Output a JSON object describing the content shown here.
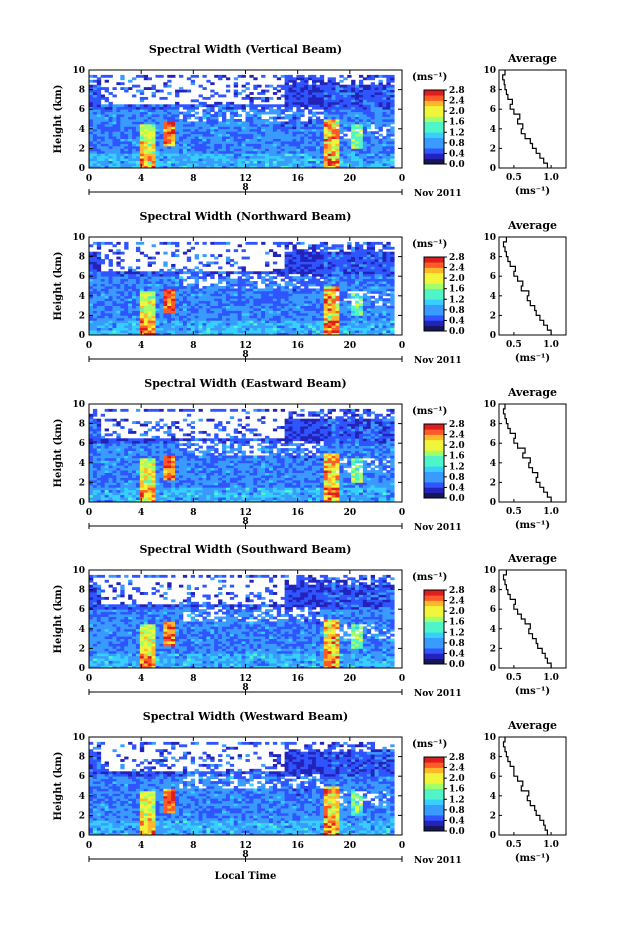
{
  "figure": {
    "date_label": "Nov 2011",
    "x_label": "Local Time",
    "y_label": "Height (km)",
    "colorbar_unit": "(ms⁻¹)",
    "colorbar_ticks": [
      "0.0",
      "0.4",
      "0.8",
      "1.2",
      "1.6",
      "2.0",
      "2.4",
      "2.8"
    ],
    "x_ticks": [
      "0",
      "4",
      "8",
      "12",
      "16",
      "20",
      "0"
    ],
    "date_ticks": [
      "8"
    ],
    "y_ticks": [
      "0",
      "2",
      "4",
      "6",
      "8",
      "10"
    ],
    "avg_title": "Average",
    "avg_xlabel": "(ms⁻¹)",
    "avg_x_ticks": [
      "0.5",
      "1.0"
    ],
    "colormap": [
      "#16165a",
      "#2323b9",
      "#2f55ff",
      "#3a9bff",
      "#36d0ff",
      "#4ff5c8",
      "#a2ff6a",
      "#f0f53a",
      "#ffb82a",
      "#ff5a28",
      "#dd1e1e"
    ],
    "colors": {
      "no_data": "#ffffff",
      "axis": "#000000"
    }
  },
  "chart_data": [
    {
      "type": "heatmap",
      "title": "Spectral Width (Vertical Beam)",
      "xlabel": "",
      "ylabel": "Height (km)",
      "xlim": [
        0,
        24
      ],
      "ylim": [
        0,
        10
      ],
      "colorbar_range": [
        0.0,
        2.8
      ],
      "average_profile": {
        "heights": [
          0,
          0.5,
          1,
          1.5,
          2,
          2.5,
          3,
          3.5,
          4,
          4.5,
          5,
          5.5,
          6,
          6.5,
          7,
          7.5,
          8,
          8.5,
          9,
          9.5
        ],
        "values": [
          0.95,
          0.9,
          0.85,
          0.8,
          0.75,
          0.72,
          0.65,
          0.6,
          0.62,
          0.55,
          0.58,
          0.5,
          0.45,
          0.48,
          0.42,
          0.4,
          0.38,
          0.37,
          0.35,
          0.38
        ]
      }
    },
    {
      "type": "heatmap",
      "title": "Spectral Width (Northward Beam)",
      "xlabel": "",
      "ylabel": "Height (km)",
      "xlim": [
        0,
        24
      ],
      "ylim": [
        0,
        10
      ],
      "colorbar_range": [
        0.0,
        2.8
      ],
      "average_profile": {
        "heights": [
          0,
          0.5,
          1,
          1.5,
          2,
          2.5,
          3,
          3.5,
          4,
          4.5,
          5,
          5.5,
          6,
          6.5,
          7,
          7.5,
          8,
          8.5,
          9,
          9.5
        ],
        "values": [
          1.0,
          0.95,
          0.9,
          0.85,
          0.8,
          0.78,
          0.72,
          0.68,
          0.7,
          0.6,
          0.62,
          0.55,
          0.5,
          0.52,
          0.45,
          0.42,
          0.4,
          0.38,
          0.36,
          0.4
        ]
      }
    },
    {
      "type": "heatmap",
      "title": "Spectral Width (Eastward Beam)",
      "xlabel": "",
      "ylabel": "Height (km)",
      "xlim": [
        0,
        24
      ],
      "ylim": [
        0,
        10
      ],
      "colorbar_range": [
        0.0,
        2.8
      ],
      "average_profile": {
        "heights": [
          0,
          0.5,
          1,
          1.5,
          2,
          2.5,
          3,
          3.5,
          4,
          4.5,
          5,
          5.5,
          6,
          6.5,
          7,
          7.5,
          8,
          8.5,
          9,
          9.5
        ],
        "values": [
          1.0,
          0.95,
          0.9,
          0.85,
          0.8,
          0.82,
          0.75,
          0.7,
          0.72,
          0.62,
          0.65,
          0.55,
          0.5,
          0.52,
          0.45,
          0.42,
          0.4,
          0.38,
          0.36,
          0.38
        ]
      }
    },
    {
      "type": "heatmap",
      "title": "Spectral Width (Southward Beam)",
      "xlabel": "",
      "ylabel": "Height (km)",
      "xlim": [
        0,
        24
      ],
      "ylim": [
        0,
        10
      ],
      "colorbar_range": [
        0.0,
        2.8
      ],
      "average_profile": {
        "heights": [
          0,
          0.5,
          1,
          1.5,
          2,
          2.5,
          3,
          3.5,
          4,
          4.5,
          5,
          5.5,
          6,
          6.5,
          7,
          7.5,
          8,
          8.5,
          9,
          9.5
        ],
        "values": [
          1.0,
          0.95,
          0.92,
          0.88,
          0.82,
          0.8,
          0.75,
          0.7,
          0.72,
          0.65,
          0.6,
          0.55,
          0.5,
          0.52,
          0.45,
          0.42,
          0.4,
          0.38,
          0.36,
          0.4
        ]
      }
    },
    {
      "type": "heatmap",
      "title": "Spectral Width (Westward Beam)",
      "xlabel": "Local Time",
      "ylabel": "Height (km)",
      "xlim": [
        0,
        24
      ],
      "ylim": [
        0,
        10
      ],
      "colorbar_range": [
        0.0,
        2.8
      ],
      "average_profile": {
        "heights": [
          0,
          0.5,
          1,
          1.5,
          2,
          2.5,
          3,
          3.5,
          4,
          4.5,
          5,
          5.5,
          6,
          6.5,
          7,
          7.5,
          8,
          8.5,
          9,
          9.5
        ],
        "values": [
          0.95,
          0.92,
          0.9,
          0.85,
          0.8,
          0.78,
          0.72,
          0.68,
          0.7,
          0.6,
          0.62,
          0.55,
          0.5,
          0.5,
          0.45,
          0.42,
          0.4,
          0.38,
          0.36,
          0.38
        ]
      }
    }
  ]
}
